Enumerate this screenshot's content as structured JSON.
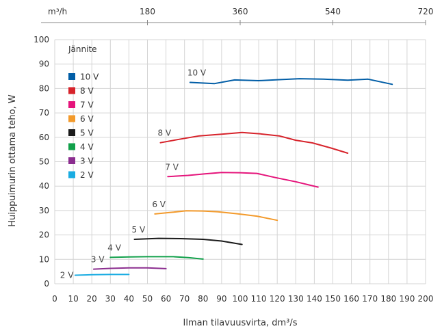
{
  "chart_data": {
    "type": "line",
    "title": "",
    "xlabel": "Ilman tilavuusvirta, dm³/s",
    "ylabel": "Huippuimurin ottama teho, W",
    "xlim": [
      0,
      200
    ],
    "ylim": [
      0,
      100
    ],
    "x_ticks": [
      0,
      10,
      20,
      30,
      40,
      50,
      60,
      70,
      80,
      90,
      100,
      110,
      120,
      130,
      140,
      150,
      160,
      170,
      180,
      190,
      200
    ],
    "y_ticks": [
      0,
      10,
      20,
      30,
      40,
      50,
      60,
      70,
      80,
      90,
      100
    ],
    "top_axis": {
      "unit_label": "m³/h",
      "ticks": [
        {
          "value": 180,
          "label": "180"
        },
        {
          "value": 360,
          "label": "360"
        },
        {
          "value": 540,
          "label": "540"
        },
        {
          "value": 720,
          "label": "720"
        }
      ]
    },
    "grid": true,
    "legend": {
      "title": "Jännite",
      "placement": "top-left"
    },
    "series": [
      {
        "name": "10 V",
        "color": "#005da6",
        "label": "10 V",
        "x": [
          73,
          86,
          97,
          110,
          121,
          132,
          145,
          158,
          169,
          182
        ],
        "y": [
          82.5,
          82,
          83.5,
          83.2,
          83.6,
          84,
          83.8,
          83.4,
          83.8,
          81.7
        ]
      },
      {
        "name": "8 V",
        "color": "#d7232b",
        "label": "8 V",
        "x": [
          57,
          68,
          78,
          90,
          101,
          111,
          121,
          130,
          139,
          149,
          158
        ],
        "y": [
          57.8,
          59.3,
          60.6,
          61.3,
          62,
          61.4,
          60.6,
          58.8,
          57.7,
          55.6,
          53.5
        ]
      },
      {
        "name": "7 V",
        "color": "#e5147b",
        "label": "7 V",
        "x": [
          61,
          72,
          81,
          90,
          100,
          109,
          119,
          130,
          142
        ],
        "y": [
          43.9,
          44.4,
          45,
          45.6,
          45.5,
          45.2,
          43.5,
          41.8,
          39.6
        ]
      },
      {
        "name": "6 V",
        "color": "#f39a2b",
        "label": "6 V",
        "x": [
          54,
          62,
          71,
          80,
          88,
          98,
          109,
          120
        ],
        "y": [
          28.6,
          29.2,
          29.9,
          29.8,
          29.5,
          28.7,
          27.7,
          26
        ]
      },
      {
        "name": "5 V",
        "color": "#1a1a1a",
        "label": "5 V",
        "x": [
          43,
          56,
          68,
          80,
          90,
          101
        ],
        "y": [
          18.2,
          18.6,
          18.5,
          18.2,
          17.5,
          16.1
        ]
      },
      {
        "name": "4 V",
        "color": "#11a04a",
        "label": "4 V",
        "x": [
          30,
          40,
          50,
          64,
          72,
          80
        ],
        "y": [
          10.8,
          11,
          11.1,
          11.1,
          10.7,
          10.1
        ]
      },
      {
        "name": "3 V",
        "color": "#8b2d8f",
        "label": "3 V",
        "x": [
          21,
          30,
          40,
          50,
          60
        ],
        "y": [
          6,
          6.3,
          6.5,
          6.5,
          6.2
        ]
      },
      {
        "name": "2 V",
        "color": "#1aace2",
        "label": "2 V",
        "x": [
          11,
          20,
          30,
          40
        ],
        "y": [
          3.5,
          3.7,
          3.8,
          3.8
        ]
      }
    ]
  }
}
